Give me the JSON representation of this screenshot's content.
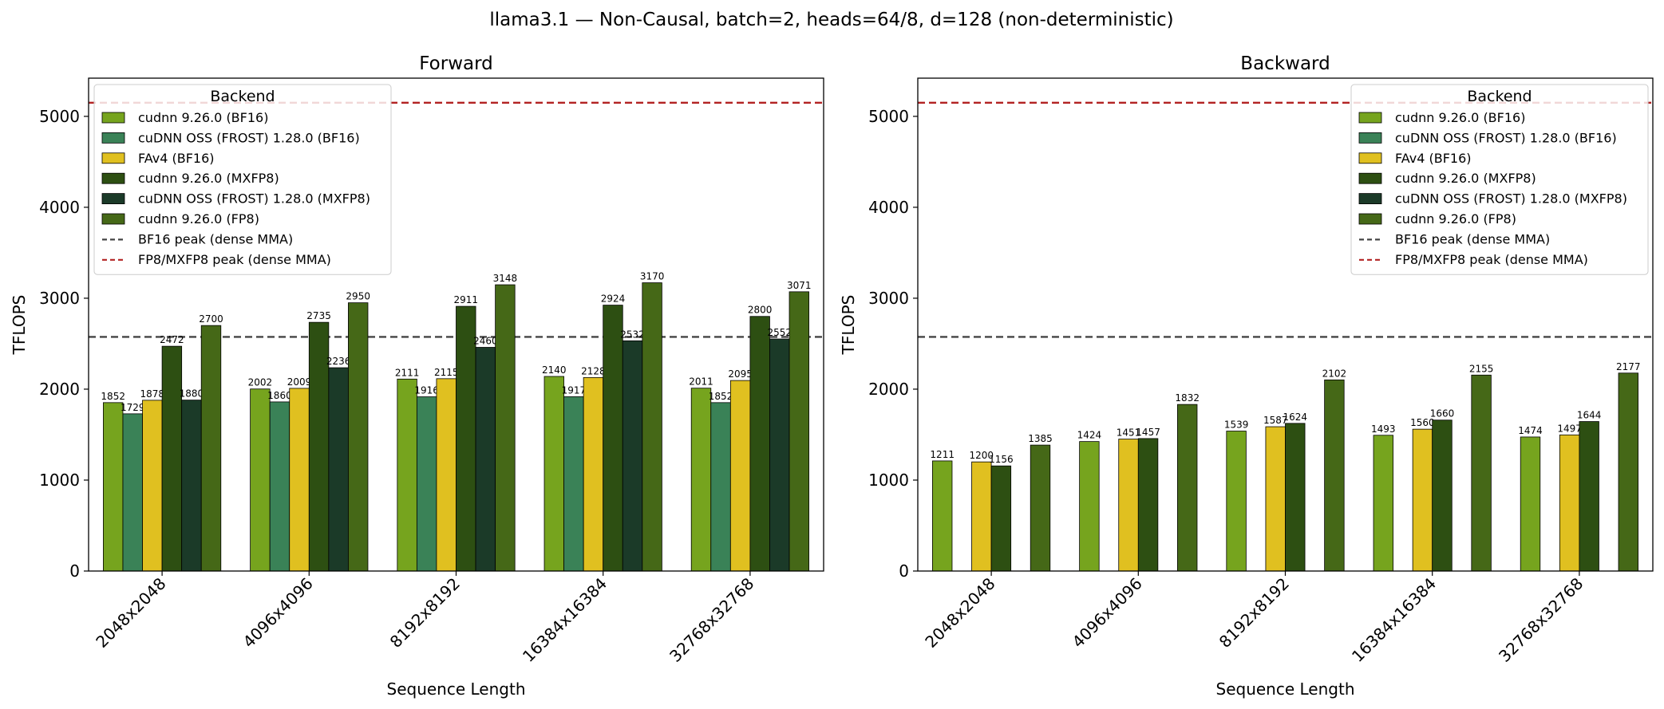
{
  "figure": {
    "suptitle": "llama3.1 — Non-Causal, batch=2, heads=64/8, d=128 (non-deterministic)"
  },
  "colors": {
    "cudnn_bf16": "#76a41e",
    "frost_bf16": "#3a8257",
    "fav4_bf16": "#e0c020",
    "cudnn_mxfp8": "#2d4f12",
    "frost_mxfp8": "#1b3a28",
    "cudnn_fp8": "#456817",
    "bf16_peak_line": "#444444",
    "fp8_peak_line": "#b22222"
  },
  "chart_data": [
    {
      "type": "bar",
      "title": "Forward",
      "xlabel": "Sequence Length",
      "ylabel": "TFLOPS",
      "ylim": [
        0,
        5420
      ],
      "yticks": [
        0,
        1000,
        2000,
        3000,
        4000,
        5000
      ],
      "grid": false,
      "legend": {
        "title": "Backend",
        "placement": "top-left"
      },
      "categories": [
        "2048x2048",
        "4096x4096",
        "8192x8192",
        "16384x16384",
        "32768x32768"
      ],
      "series": [
        {
          "name": "cudnn 9.26.0 (BF16)",
          "color_key": "cudnn_bf16",
          "values": [
            1852,
            2002,
            2111,
            2140,
            2011
          ]
        },
        {
          "name": "cuDNN OSS (FROST) 1.28.0 (BF16)",
          "color_key": "frost_bf16",
          "values": [
            1729,
            1860,
            1916,
            1917,
            1852
          ]
        },
        {
          "name": "FAv4 (BF16)",
          "color_key": "fav4_bf16",
          "values": [
            1878,
            2009,
            2115,
            2128,
            2095
          ]
        },
        {
          "name": "cudnn 9.26.0 (MXFP8)",
          "color_key": "cudnn_mxfp8",
          "values": [
            2472,
            2735,
            2911,
            2924,
            2800
          ]
        },
        {
          "name": "cuDNN OSS (FROST) 1.28.0 (MXFP8)",
          "color_key": "frost_mxfp8",
          "values": [
            1880,
            2236,
            2460,
            2532,
            2552
          ]
        },
        {
          "name": "cudnn 9.26.0 (FP8)",
          "color_key": "cudnn_fp8",
          "values": [
            2700,
            2950,
            3148,
            3170,
            3071
          ]
        }
      ],
      "reference_lines": [
        {
          "name": "BF16 peak (dense MMA)",
          "value": 2575,
          "color_key": "bf16_peak_line"
        },
        {
          "name": "FP8/MXFP8 peak (dense MMA)",
          "value": 5150,
          "color_key": "fp8_peak_line"
        }
      ]
    },
    {
      "type": "bar",
      "title": "Backward",
      "xlabel": "Sequence Length",
      "ylabel": "TFLOPS",
      "ylim": [
        0,
        5420
      ],
      "yticks": [
        0,
        1000,
        2000,
        3000,
        4000,
        5000
      ],
      "grid": false,
      "legend": {
        "title": "Backend",
        "placement": "top-right"
      },
      "categories": [
        "2048x2048",
        "4096x4096",
        "8192x8192",
        "16384x16384",
        "32768x32768"
      ],
      "series": [
        {
          "name": "cudnn 9.26.0 (BF16)",
          "color_key": "cudnn_bf16",
          "values": [
            1211,
            1424,
            1539,
            1493,
            1474
          ]
        },
        {
          "name": "cuDNN OSS (FROST) 1.28.0 (BF16)",
          "color_key": "frost_bf16",
          "values": [
            null,
            null,
            null,
            null,
            null
          ]
        },
        {
          "name": "FAv4 (BF16)",
          "color_key": "fav4_bf16",
          "values": [
            1200,
            1451,
            1587,
            1560,
            1497
          ]
        },
        {
          "name": "cudnn 9.26.0 (MXFP8)",
          "color_key": "cudnn_mxfp8",
          "values": [
            1156,
            1457,
            1624,
            1660,
            1644
          ]
        },
        {
          "name": "cuDNN OSS (FROST) 1.28.0 (MXFP8)",
          "color_key": "frost_mxfp8",
          "values": [
            null,
            null,
            null,
            null,
            null
          ]
        },
        {
          "name": "cudnn 9.26.0 (FP8)",
          "color_key": "cudnn_fp8",
          "values": [
            1385,
            1832,
            2102,
            2155,
            2177
          ]
        }
      ],
      "reference_lines": [
        {
          "name": "BF16 peak (dense MMA)",
          "value": 2575,
          "color_key": "bf16_peak_line"
        },
        {
          "name": "FP8/MXFP8 peak (dense MMA)",
          "value": 5150,
          "color_key": "fp8_peak_line"
        }
      ]
    }
  ]
}
